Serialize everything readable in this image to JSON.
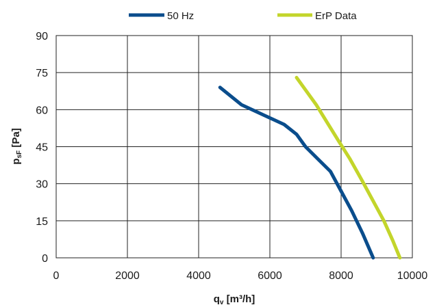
{
  "chart_data": {
    "type": "line",
    "title": "",
    "xlabel": "q",
    "xlabel_sub": "v",
    "xlabel_unit": " [m³/h]",
    "ylabel": "p",
    "ylabel_sub": "sF",
    "ylabel_unit": " [Pa]",
    "xlim": [
      0,
      10000
    ],
    "ylim": [
      0,
      90
    ],
    "xticks": [
      0,
      2000,
      4000,
      6000,
      8000,
      10000
    ],
    "yticks": [
      0,
      15,
      30,
      45,
      60,
      75,
      90
    ],
    "grid": true,
    "legend_position": "top",
    "series": [
      {
        "name": "50 Hz",
        "color": "#0a4d8c",
        "x": [
          4600,
          5200,
          5800,
          6400,
          6750,
          7000,
          7350,
          7700,
          8000,
          8300,
          8600,
          8900
        ],
        "y": [
          69,
          62,
          58,
          54,
          50,
          45,
          40,
          35,
          27,
          19,
          10,
          0
        ]
      },
      {
        "name": "ErP Data",
        "color": "#c3d52b",
        "x": [
          6750,
          7050,
          7300,
          7600,
          7900,
          8250,
          8600,
          8900,
          9200,
          9450,
          9650
        ],
        "y": [
          73,
          67,
          62,
          55,
          48,
          40,
          31,
          23,
          15,
          7,
          0
        ]
      }
    ]
  }
}
